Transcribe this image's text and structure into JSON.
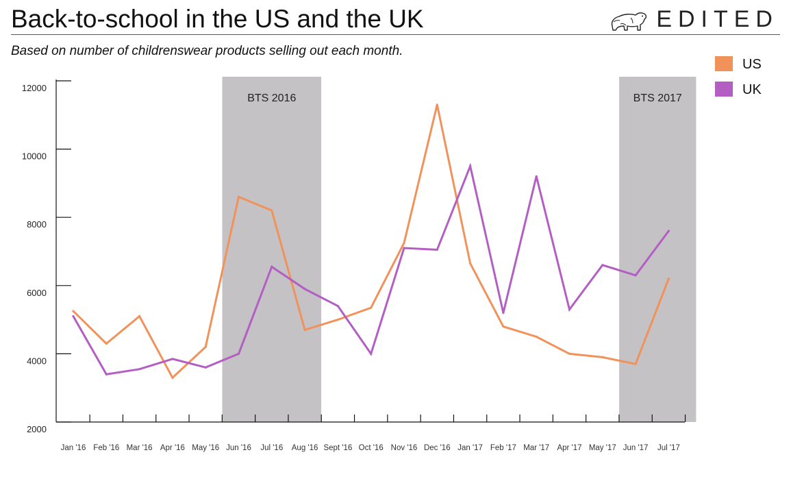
{
  "header": {
    "title": "Back-to-school in the US and the UK",
    "subtitle": "Based on number of childrenswear products selling out each month.",
    "brand": "EDITED",
    "brand_icon": "polar-bear-icon"
  },
  "colors": {
    "us": "#f0925a",
    "uk": "#b25ec3",
    "band": "#c4c2c4",
    "axis": "#111111"
  },
  "chart_data": {
    "type": "line",
    "title": "Back-to-school in the US and the UK",
    "subtitle": "Based on number of childrenswear products selling out each month.",
    "xlabel": "",
    "ylabel": "",
    "ylim": [
      2000,
      12000
    ],
    "yticks": [
      2000,
      4000,
      6000,
      8000,
      10000,
      12000
    ],
    "ytick_labels": [
      "2000",
      "4000",
      "6000",
      "8000",
      "10000",
      "12000"
    ],
    "categories": [
      "Jan '16",
      "Feb '16",
      "Mar '16",
      "Apr '16",
      "May '16",
      "Jun '16",
      "Jul '16",
      "Aug '16",
      "Sept '16",
      "Oct '16",
      "Nov '16",
      "Dec '16",
      "Jan '17",
      "Feb '17",
      "Mar '17",
      "Apr '17",
      "May '17",
      "Jun '17",
      "Jul '17"
    ],
    "series": [
      {
        "name": "US",
        "values": [
          5250,
          4300,
          5100,
          3300,
          4200,
          8600,
          8200,
          4700,
          5000,
          5350,
          7250,
          11300,
          6650,
          4800,
          4500,
          4000,
          3900,
          3700,
          6200
        ]
      },
      {
        "name": "UK",
        "values": [
          5100,
          3400,
          3550,
          3850,
          3600,
          4000,
          6550,
          5900,
          5400,
          4000,
          7100,
          7050,
          9500,
          5200,
          9200,
          5300,
          6600,
          6300,
          7600
        ]
      }
    ],
    "bands": [
      {
        "label": "BTS 2016",
        "from": "Jun '16",
        "to": "Aug '16"
      },
      {
        "label": "BTS 2017",
        "from": "Jun '17",
        "to": "Jul '17"
      }
    ],
    "legend": {
      "placement": "top-right",
      "entries": [
        "US",
        "UK"
      ]
    },
    "grid": false
  }
}
